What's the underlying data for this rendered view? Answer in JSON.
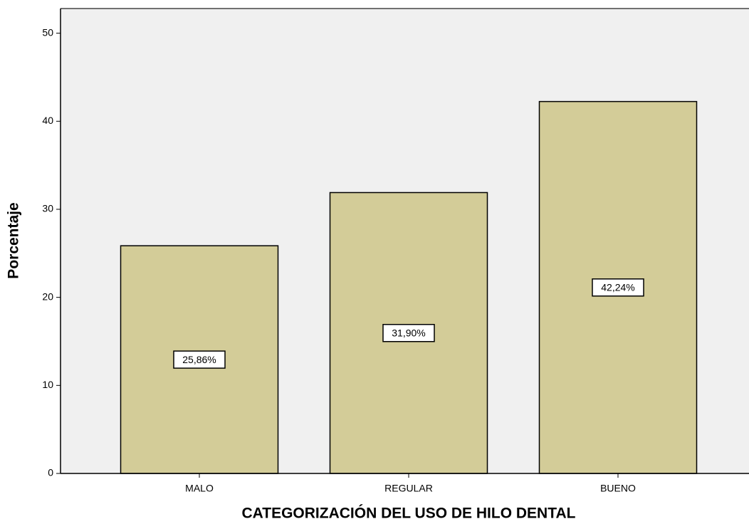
{
  "chart_data": {
    "type": "bar",
    "x_label": "CATEGORIZACIÓN DEL USO DE HILO DENTAL",
    "y_label": "Porcentaje",
    "categories": [
      "MALO",
      "REGULAR",
      "BUENO"
    ],
    "values": [
      25.86,
      31.9,
      42.24
    ],
    "value_labels": [
      "25,86%",
      "31,90%",
      "42,24%"
    ],
    "color": "#d3cc98",
    "ylim": [
      0,
      52.8
    ],
    "yticks": [
      0,
      10,
      20,
      30,
      40,
      50
    ],
    "grid": false
  }
}
